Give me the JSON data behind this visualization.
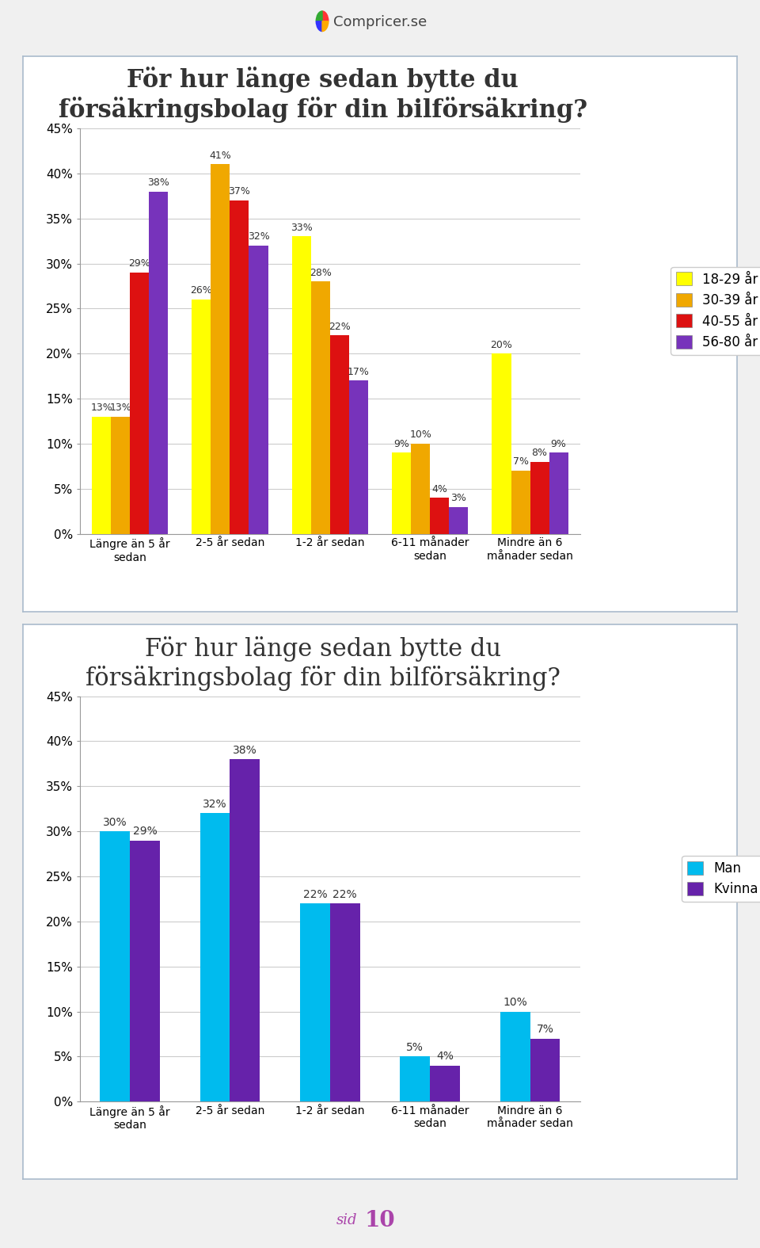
{
  "chart1": {
    "title": "För hur länge sedan bytte du\nförsäkringsbolag för din bilförsäkring?",
    "categories": [
      "Längre än 5 år\nsedan",
      "2-5 år sedan",
      "1-2 år sedan",
      "6-11 månader\nsedan",
      "Mindre än 6\nmånader sedan"
    ],
    "series": {
      "18-29 år": [
        13,
        26,
        33,
        9,
        20
      ],
      "30-39 år": [
        13,
        41,
        28,
        10,
        7
      ],
      "40-55 år": [
        29,
        37,
        22,
        4,
        8
      ],
      "56-80 år": [
        38,
        32,
        17,
        3,
        9
      ]
    },
    "colors": {
      "18-29 år": "#FFFF00",
      "30-39 år": "#F0A800",
      "40-55 år": "#DD1111",
      "56-80 år": "#7733BB"
    },
    "legend_labels": [
      "18-29 år",
      "30-39 år",
      "40-55 år",
      "56-80 år"
    ],
    "ylim": [
      0,
      45
    ],
    "ytick_labels": [
      "0%",
      "5%",
      "10%",
      "15%",
      "20%",
      "25%",
      "30%",
      "35%",
      "40%",
      "45%"
    ],
    "bar_labels": {
      "18-29 år": [
        "13%",
        "26%",
        "33%",
        "9%",
        "20%"
      ],
      "30-39 år": [
        "13%",
        "41%",
        "28%",
        "10%",
        "7%"
      ],
      "40-55 år": [
        "29%",
        "37%",
        "22%",
        "4%",
        "8%"
      ],
      "56-80 år": [
        "38%",
        "32%",
        "17%",
        "3%",
        "9%"
      ]
    }
  },
  "chart2": {
    "title": "För hur länge sedan bytte du\nförsäkringsbolag för din bilförsäkring?",
    "categories": [
      "Längre än 5 år\nsedan",
      "2-5 år sedan",
      "1-2 år sedan",
      "6-11 månader\nsedan",
      "Mindre än 6\nmånader sedan"
    ],
    "series": {
      "Man": [
        30,
        32,
        22,
        5,
        10
      ],
      "Kvinna": [
        29,
        38,
        22,
        4,
        7
      ]
    },
    "colors": {
      "Man": "#00BBEE",
      "Kvinna": "#6622AA"
    },
    "legend_labels": [
      "Man",
      "Kvinna"
    ],
    "ylim": [
      0,
      45
    ],
    "ytick_labels": [
      "0%",
      "5%",
      "10%",
      "15%",
      "20%",
      "25%",
      "30%",
      "35%",
      "40%",
      "45%"
    ],
    "bar_labels": {
      "Man": [
        "30%",
        "32%",
        "22%",
        "5%",
        "10%"
      ],
      "Kvinna": [
        "29%",
        "38%",
        "22%",
        "4%",
        "7%"
      ]
    }
  },
  "background_color": "#F0F0F0",
  "panel_color": "#FFFFFF",
  "border_color": "#AABBCC",
  "grid_color": "#CCCCCC",
  "text_color": "#333333",
  "compricer_text": "Compricer.se",
  "page_label": "sid",
  "page_number": "10",
  "title1_fontsize": 22,
  "title2_fontsize": 22,
  "tick_fontsize": 11,
  "legend_fontsize": 12,
  "bar_label_fontsize": 9
}
